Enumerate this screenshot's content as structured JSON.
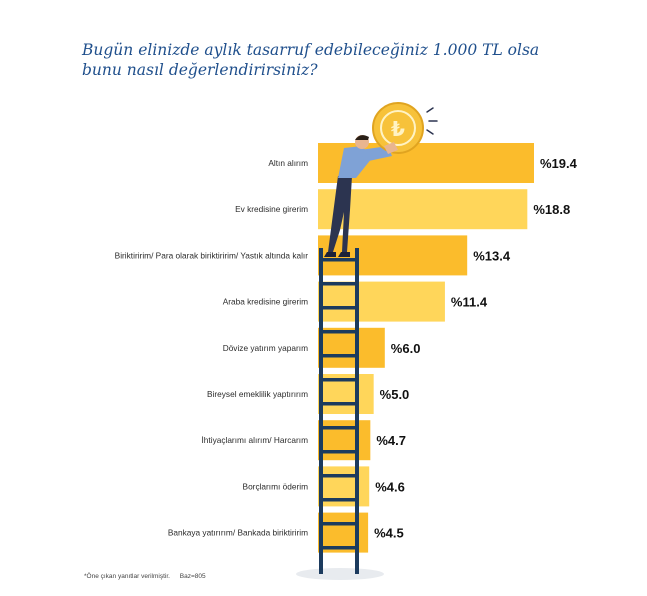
{
  "title": "Bugün elinizde aylık tasarruf edebileceğiniz 1.000 TL olsa bunu nasıl değerlendirirsiniz?",
  "footnote": {
    "note": "*Öne çıkan yanıtlar verilmiştir.",
    "base": "Baz=805"
  },
  "chart_data": {
    "type": "bar",
    "orientation": "horizontal",
    "title": "Bugün elinizde aylık tasarruf edebileceğiniz 1.000 TL olsa bunu nasıl değerlendirirsiniz?",
    "categories": [
      "Altın alırım",
      "Ev kredisine girerim",
      "Biriktiririm/ Para olarak biriktiririm/ Yastık altında kalır",
      "Araba kredisine girerim",
      "Dövize yatırım yaparım",
      "Bireysel emeklilik yaptırırım",
      "İhtiyaçlarımı alırım/ Harcarım",
      "Borçlarımı öderim",
      "Bankaya yatırırım/ Bankada biriktiririm"
    ],
    "values": [
      19.4,
      18.8,
      13.4,
      11.4,
      6.0,
      5.0,
      4.7,
      4.6,
      4.5
    ],
    "value_labels": [
      "%19.4",
      "%18.8",
      "%13.4",
      "%11.4",
      "%6.0",
      "%5.0",
      "%4.7",
      "%4.6",
      "%4.5"
    ],
    "colors": {
      "bar_dark": "#fbbc2c",
      "bar_light": "#ffd65a",
      "title": "#1f4f8c",
      "ladder": "#1c3b5e",
      "coin": "#f7c23a"
    },
    "xlim": [
      0,
      19.4
    ],
    "grid": false,
    "legend": "none"
  }
}
